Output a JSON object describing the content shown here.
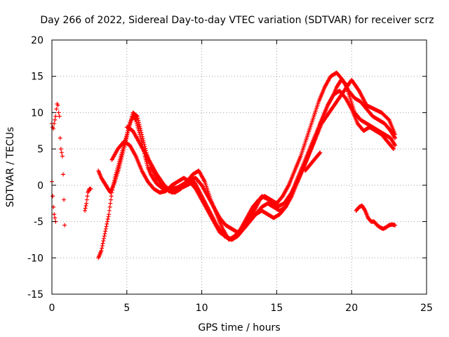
{
  "chart_data": {
    "type": "scatter",
    "title": "Day 266 of 2022, Sidereal Day-to-day VTEC variation (SDTVAR) for receiver scrz",
    "xlabel": "GPS time / hours",
    "ylabel": "SDTVAR / TECUs",
    "xlim": [
      0,
      25
    ],
    "ylim": [
      -15,
      20
    ],
    "xticks": [
      0,
      5,
      10,
      15,
      20,
      25
    ],
    "yticks": [
      -15,
      -10,
      -5,
      0,
      5,
      10,
      15,
      20
    ],
    "xtick_labels": [
      "0",
      "5",
      "10",
      "15",
      "20",
      "25"
    ],
    "ytick_labels": [
      "-15",
      "-10",
      "-5",
      "0",
      "5",
      "10",
      "15",
      "20"
    ],
    "grid": true,
    "marker": "+",
    "color": "#ff0000",
    "series": [
      {
        "name": "s1",
        "x": [
          0.0,
          0.05,
          0.1,
          0.15,
          0.2,
          0.25,
          0.3,
          0.35,
          0.4,
          0.45,
          0.5
        ],
        "y": [
          8.5,
          8.0,
          7.8,
          8.5,
          9.0,
          9.5,
          10.5,
          11.2,
          11.0,
          10.0,
          9.5
        ]
      },
      {
        "name": "s2",
        "x": [
          0.0,
          0.05,
          0.1,
          0.15,
          0.2,
          0.25
        ],
        "y": [
          0.5,
          -1.5,
          -3.0,
          -4.0,
          -4.5,
          -5.0
        ]
      },
      {
        "name": "s3",
        "x": [
          0.55,
          0.6,
          0.65,
          0.7,
          0.75,
          0.8,
          0.85
        ],
        "y": [
          6.5,
          5.0,
          4.5,
          4.0,
          1.5,
          -2.0,
          -5.5
        ]
      },
      {
        "name": "s4",
        "x": [
          2.2,
          2.3,
          2.4,
          2.5,
          2.6
        ],
        "y": [
          -3.5,
          -2.5,
          -1.0,
          -0.5,
          -0.5
        ]
      },
      {
        "name": "s5",
        "x": [
          3.1,
          3.2,
          3.3,
          3.4,
          3.5,
          3.6,
          3.7,
          3.8,
          3.9,
          4.0,
          4.2,
          4.4,
          4.6,
          4.8,
          5.0,
          5.2,
          5.4,
          5.6,
          5.8,
          6.0,
          6.2,
          6.4,
          6.6,
          6.8,
          7.0,
          7.3,
          7.6,
          8.0,
          8.4,
          8.8,
          9.2,
          9.6,
          10.0,
          10.4,
          10.8,
          11.2,
          11.6,
          12.0,
          12.4,
          12.8,
          13.2,
          13.6,
          14.0,
          14.4,
          14.8,
          15.2,
          15.6,
          16.0,
          16.4,
          16.8,
          17.2,
          17.6,
          18.0,
          18.4,
          18.8,
          19.0,
          19.3,
          19.6,
          19.9,
          20.2,
          20.6,
          21.0,
          21.4,
          21.8,
          22.2,
          22.6,
          22.9
        ],
        "y": [
          -10.0,
          -9.5,
          -9.0,
          -8.0,
          -7.0,
          -6.0,
          -5.0,
          -4.0,
          -2.5,
          -1.0,
          1.0,
          2.5,
          4.0,
          5.5,
          7.0,
          8.5,
          9.5,
          9.0,
          7.5,
          6.0,
          4.0,
          2.5,
          1.5,
          0.8,
          0.2,
          -0.3,
          -0.5,
          -0.5,
          -0.3,
          0.2,
          0.8,
          1.0,
          0.0,
          -1.5,
          -3.0,
          -4.5,
          -5.5,
          -6.0,
          -6.5,
          -6.0,
          -5.0,
          -4.0,
          -3.0,
          -2.5,
          -3.0,
          -3.5,
          -3.0,
          -1.5,
          0.5,
          2.5,
          4.5,
          6.5,
          9.0,
          11.0,
          12.5,
          13.5,
          14.5,
          14.0,
          12.0,
          10.0,
          9.0,
          8.5,
          8.0,
          7.5,
          7.0,
          6.5,
          5.5
        ]
      },
      {
        "name": "s6",
        "x": [
          3.1,
          3.3,
          3.6,
          3.9,
          4.2,
          4.5,
          4.8,
          5.1,
          5.4,
          5.7,
          6.0,
          6.3,
          6.6,
          7.0,
          7.4,
          7.8,
          8.2,
          8.6,
          9.0,
          9.4,
          9.8,
          10.2,
          10.6,
          11.0,
          11.4,
          11.8,
          12.2,
          12.6,
          13.0,
          13.4,
          13.8,
          14.2,
          14.6,
          15.0,
          15.4,
          15.8,
          16.2,
          16.6,
          17.0,
          17.4,
          17.8,
          18.2,
          18.6,
          19.0,
          19.4,
          19.8,
          20.2,
          20.6,
          21.0,
          21.4,
          21.8,
          22.2,
          22.6,
          22.9
        ],
        "y": [
          2.0,
          1.0,
          0.0,
          -1.0,
          0.5,
          2.5,
          5.0,
          7.5,
          10.0,
          9.5,
          7.0,
          4.5,
          2.5,
          1.0,
          0.0,
          -0.8,
          -1.0,
          -0.5,
          0.5,
          1.5,
          2.0,
          0.5,
          -2.0,
          -4.0,
          -6.0,
          -7.5,
          -7.0,
          -6.0,
          -4.5,
          -3.0,
          -2.0,
          -1.5,
          -2.0,
          -2.5,
          -1.5,
          0.0,
          2.0,
          4.0,
          6.5,
          9.0,
          11.5,
          13.5,
          15.0,
          15.5,
          14.5,
          13.0,
          12.0,
          11.5,
          10.5,
          9.5,
          9.0,
          8.5,
          7.5,
          6.5
        ]
      },
      {
        "name": "s7",
        "x": [
          4.0,
          4.4,
          4.8,
          5.2,
          5.6,
          6.0,
          6.4,
          6.8,
          7.2,
          7.6,
          8.0,
          8.4,
          8.8,
          9.2,
          9.6,
          10.0,
          10.4,
          10.8,
          11.2,
          11.6,
          12.0,
          12.4,
          12.8,
          13.2,
          13.6,
          14.0,
          14.4,
          14.8,
          15.2,
          15.6,
          16.0,
          16.4,
          16.8,
          17.2,
          17.6,
          18.0,
          18.4,
          18.8,
          19.2,
          19.6,
          20.0,
          20.4,
          20.8,
          21.2,
          21.6,
          22.0,
          22.4,
          22.8
        ],
        "y": [
          3.5,
          5.0,
          6.0,
          5.5,
          4.0,
          2.0,
          0.5,
          -0.5,
          -1.0,
          -0.8,
          0.0,
          0.5,
          1.0,
          0.5,
          -0.5,
          -2.0,
          -3.5,
          -5.0,
          -6.5,
          -7.0,
          -7.5,
          -7.0,
          -6.0,
          -5.0,
          -4.0,
          -3.5,
          -4.0,
          -4.5,
          -4.0,
          -3.0,
          -1.0,
          1.0,
          3.0,
          5.0,
          7.0,
          9.0,
          11.0,
          12.5,
          13.0,
          12.0,
          10.5,
          8.5,
          7.5,
          8.0,
          7.5,
          7.0,
          6.0,
          5.0
        ]
      },
      {
        "name": "s8",
        "x": [
          5.0,
          5.4,
          5.8,
          6.2,
          6.6,
          7.0,
          7.5,
          8.0,
          8.5,
          9.0,
          9.5,
          10.0,
          10.5,
          11.0,
          11.5,
          12.0,
          12.5,
          13.0,
          13.5,
          14.0,
          14.5,
          15.0,
          15.5,
          16.0,
          16.5,
          17.0,
          17.5,
          18.0,
          18.5,
          19.0,
          19.5,
          20.0,
          20.5,
          21.0,
          21.5,
          22.0,
          22.5,
          22.9
        ],
        "y": [
          8.0,
          7.5,
          6.0,
          4.5,
          3.0,
          1.5,
          0.0,
          -1.0,
          -0.5,
          0.0,
          0.5,
          -1.5,
          -3.5,
          -5.5,
          -7.0,
          -7.5,
          -6.5,
          -5.0,
          -3.5,
          -1.5,
          -2.0,
          -3.0,
          -2.5,
          -1.0,
          1.0,
          3.5,
          6.0,
          8.5,
          10.0,
          11.5,
          13.0,
          14.5,
          13.0,
          11.0,
          10.5,
          10.0,
          9.0,
          7.0
        ]
      },
      {
        "name": "s9",
        "x": [
          16.9,
          17.1,
          17.3,
          17.5,
          17.7,
          17.9
        ],
        "y": [
          2.0,
          2.5,
          3.0,
          3.5,
          4.0,
          4.5
        ]
      },
      {
        "name": "s10",
        "x": [
          20.3,
          20.5,
          20.7,
          20.9,
          21.1,
          21.3,
          21.5,
          21.7,
          21.9,
          22.1,
          22.3,
          22.5,
          22.7,
          22.9
        ],
        "y": [
          -3.5,
          -3.0,
          -2.8,
          -3.5,
          -4.5,
          -5.0,
          -5.0,
          -5.5,
          -5.8,
          -6.0,
          -5.8,
          -5.5,
          -5.4,
          -5.5
        ]
      }
    ]
  }
}
